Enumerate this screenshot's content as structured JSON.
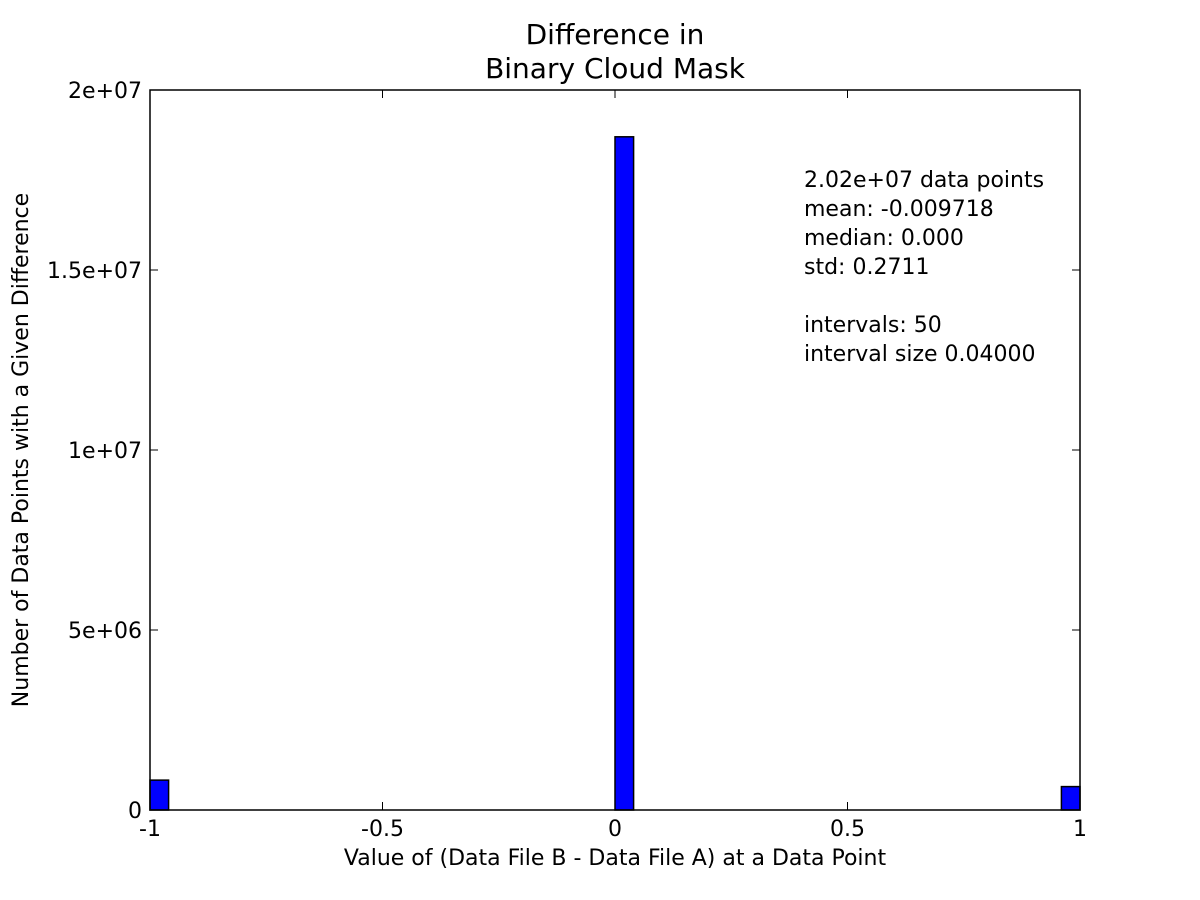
{
  "chart_data": {
    "type": "bar",
    "title_lines": [
      "Difference in",
      "Binary Cloud Mask"
    ],
    "xlabel": "Value of (Data File B - Data File A) at a Data Point",
    "ylabel": "Number of Data Points with a Given Difference",
    "xlim": [
      -1,
      1
    ],
    "ylim": [
      0,
      20000000
    ],
    "xticks": [
      -1,
      -0.5,
      0,
      0.5,
      1
    ],
    "xtick_labels": [
      "-1",
      "-0.5",
      "0",
      "0.5",
      "1"
    ],
    "yticks": [
      0,
      5000000,
      10000000,
      15000000,
      20000000
    ],
    "ytick_labels": [
      "0",
      "5e+06",
      "1e+07",
      "1.5e+07",
      "2e+07"
    ],
    "grid": false,
    "bar_color": "#0000ff",
    "bins": [
      {
        "start": -1.0,
        "end": -0.96,
        "count": 830000
      },
      {
        "start": 0.0,
        "end": 0.04,
        "count": 18700000
      },
      {
        "start": 0.96,
        "end": 1.0,
        "count": 650000
      }
    ],
    "stats_lines": [
      "2.02e+07 data points",
      "mean: -0.009718",
      "median: 0.000",
      "std: 0.2711",
      "",
      "intervals: 50",
      "interval size 0.04000"
    ]
  }
}
